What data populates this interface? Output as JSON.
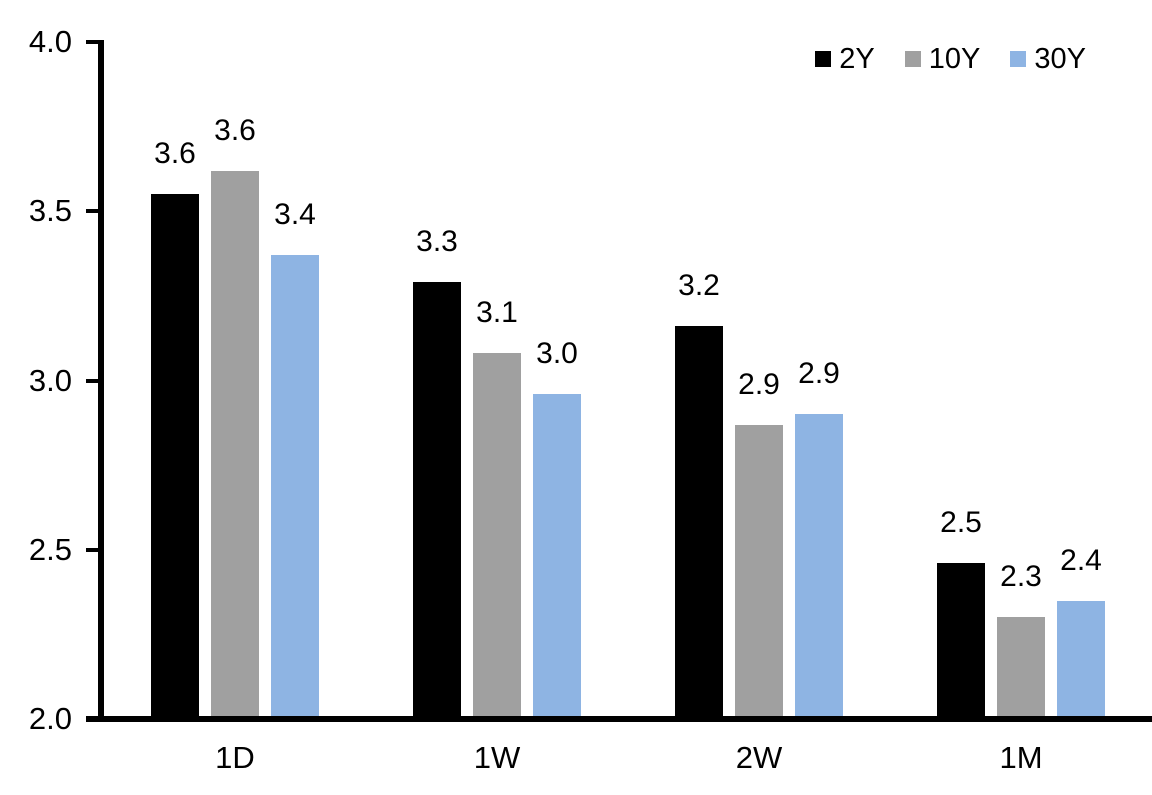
{
  "chart_data": {
    "type": "bar",
    "title": "",
    "categories": [
      "1D",
      "1W",
      "2W",
      "1M"
    ],
    "series": [
      {
        "name": "2Y",
        "color": "#000000",
        "values": [
          3.55,
          3.29,
          3.16,
          2.46
        ],
        "labels": [
          "3.6",
          "3.3",
          "3.2",
          "2.5"
        ]
      },
      {
        "name": "10Y",
        "color": "#A0A0A0",
        "values": [
          3.62,
          3.08,
          2.87,
          2.3
        ],
        "labels": [
          "3.6",
          "3.1",
          "2.9",
          "2.3"
        ]
      },
      {
        "name": "30Y",
        "color": "#8EB4E3",
        "values": [
          3.37,
          2.96,
          2.9,
          2.35
        ],
        "labels": [
          "3.4",
          "3.0",
          "2.9",
          "2.4"
        ]
      }
    ],
    "xlabel": "",
    "ylabel": "",
    "ylim": [
      2.0,
      4.0
    ],
    "yticks": [
      2.0,
      2.5,
      3.0,
      3.5,
      4.0
    ],
    "ytick_labels": [
      "2.0",
      "2.5",
      "3.0",
      "3.5",
      "4.0"
    ],
    "grid": false,
    "legend_position": "top-right",
    "axis_color": "#000000",
    "background": "#FFFFFF",
    "text_color": "#000000"
  }
}
